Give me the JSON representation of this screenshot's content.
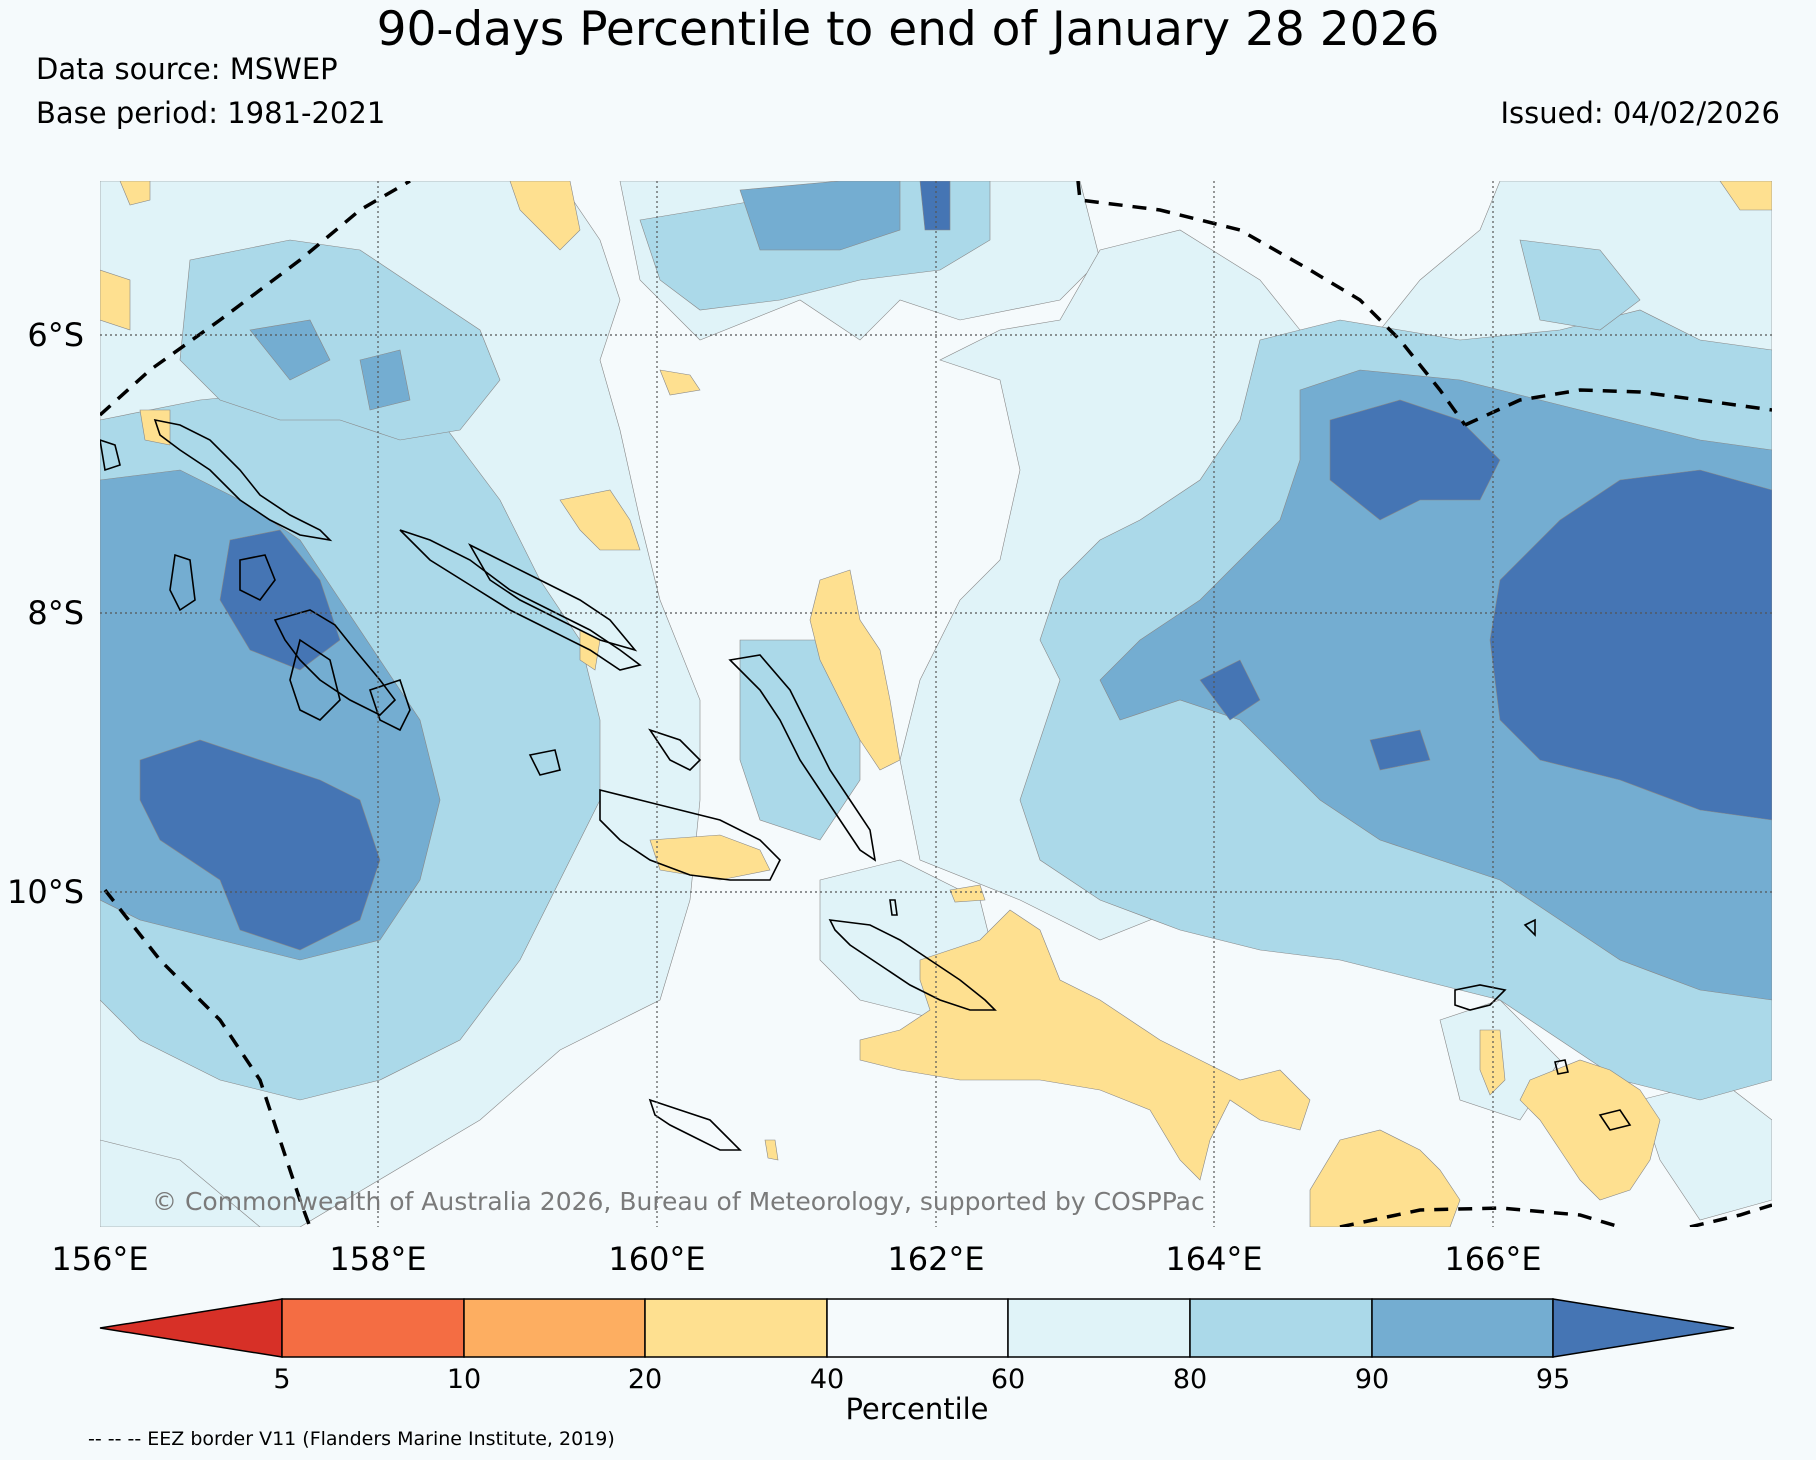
{
  "title": "90-days Percentile to end of January 28 2026",
  "data_source": "Data source: MSWEP",
  "base_period": "Base period: 1981-2021",
  "issued": "Issued: 04/02/2026",
  "copyright": "© Commonwealth of Australia 2026, Bureau of Meteorology, supported by COSPPac",
  "footnote": "-- -- -- EEZ border V11 (Flanders Marine Institute, 2019)",
  "lat_labels": [
    "6°S",
    "8°S",
    "10°S"
  ],
  "lon_labels": [
    "156°E",
    "158°E",
    "160°E",
    "162°E",
    "164°E",
    "166°E"
  ],
  "colorbar": {
    "label": "Percentile",
    "ticks": [
      "5",
      "10",
      "20",
      "40",
      "60",
      "80",
      "90",
      "95"
    ],
    "colors": {
      "lt5": "#d73027",
      "p5_10": "#f46d43",
      "p10_20": "#fdae61",
      "p20_40": "#fee090",
      "p40_60": "#f5fafc",
      "p60_80": "#e0f3f8",
      "p80_90": "#abd9e9",
      "p90_95": "#74add1",
      "gt95": "#4575b4"
    }
  }
}
